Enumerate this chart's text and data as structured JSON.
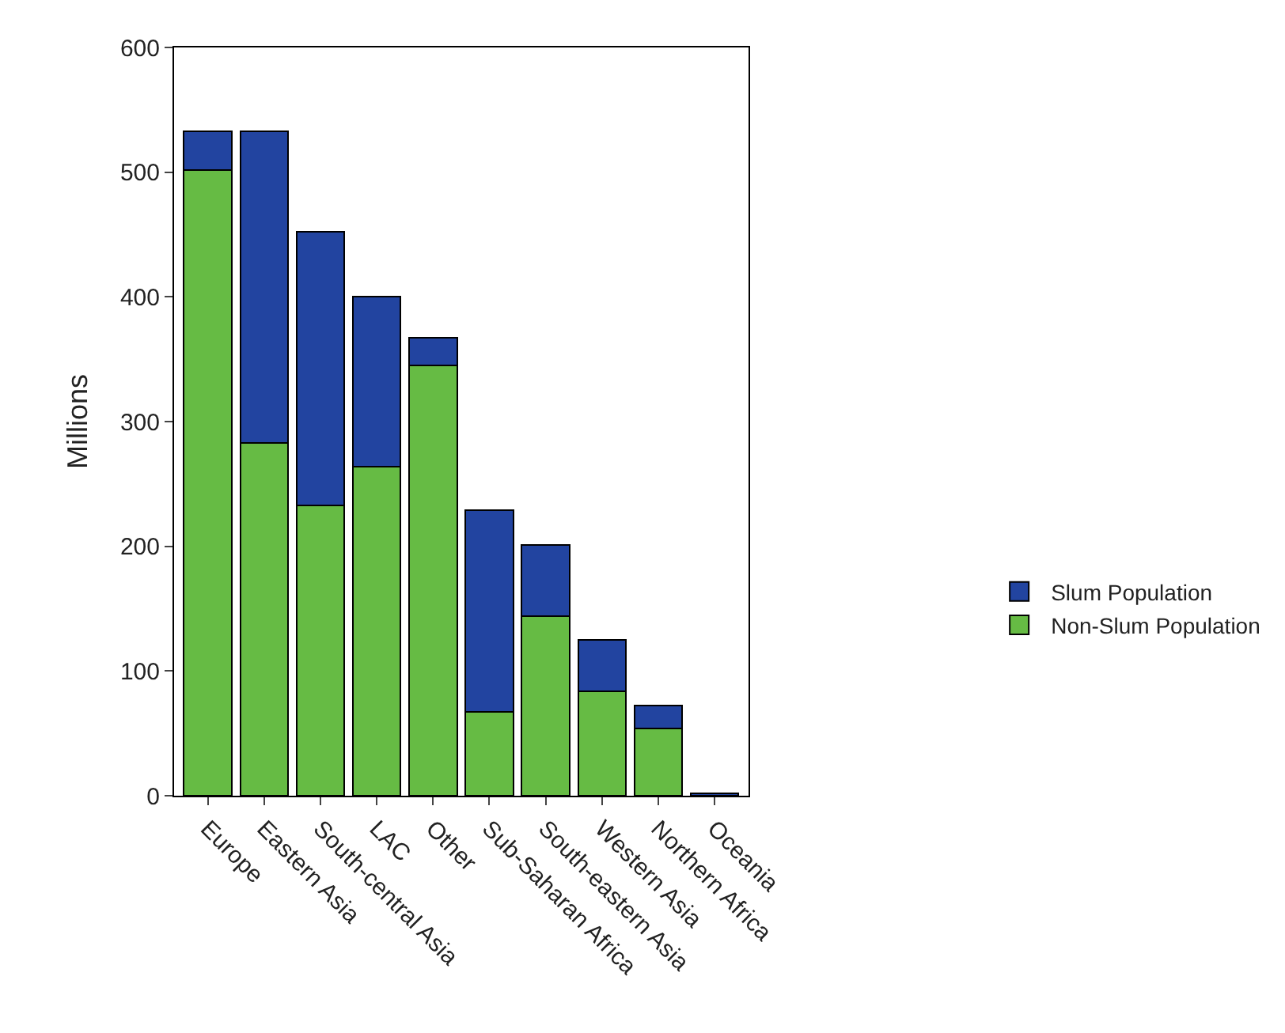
{
  "chart_data": {
    "type": "bar",
    "stacked": true,
    "ylabel": "Millions",
    "categories": [
      "Europe",
      "Eastern Asia",
      "South-central Asia",
      "LAC",
      "Other",
      "Sub-Saharan Africa",
      "South-eastern Asia",
      "Western Asia",
      "Northern Africa",
      "Oceania"
    ],
    "series": [
      {
        "name": "Non-Slum Population",
        "color": "#66bb44",
        "values": [
          502,
          283,
          233,
          264,
          345,
          67,
          144,
          84,
          54,
          0
        ]
      },
      {
        "name": "Slum Population",
        "color": "#2244a0",
        "values": [
          31,
          250,
          219,
          136,
          22,
          162,
          57,
          41,
          18,
          2
        ]
      }
    ],
    "ylim": [
      0,
      600
    ],
    "yticks": [
      0,
      100,
      200,
      300,
      400,
      500,
      600
    ],
    "legend": "right"
  }
}
